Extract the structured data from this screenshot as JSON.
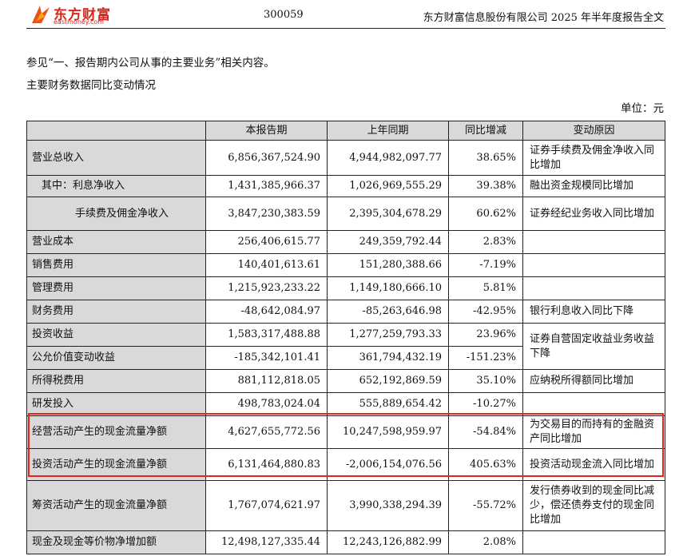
{
  "header": {
    "logo_cn": "东方财富",
    "logo_en": "eastmoney.com",
    "stock_code": "300059",
    "report_title": "东方财富信息股份有限公司 2025 年半年度报告全文"
  },
  "intro": {
    "line1": "参见“一、报告期内公司从事的主要业务”相关内容。",
    "line2": "主要财务数据同比变动情况",
    "unit": "单位：元"
  },
  "table": {
    "headers": [
      "",
      "本报告期",
      "上年同期",
      "同比增减",
      "变动原因"
    ],
    "rows": [
      {
        "item": "营业总收入",
        "current": "6,856,367,524.90",
        "prior": "4,944,982,097.77",
        "change": "38.65%",
        "reason": "证券手续费及佣金净收入同比增加"
      },
      {
        "item": "其中：利息净收入",
        "current": "1,431,385,966.37",
        "prior": "1,026,969,555.29",
        "change": "39.38%",
        "reason": "融出资金规模同比增加"
      },
      {
        "item": "手续费及佣金净收入",
        "current": "3,847,230,383.59",
        "prior": "2,395,304,678.29",
        "change": "60.62%",
        "reason": "证券经纪业务收入同比增加"
      },
      {
        "item": "营业成本",
        "current": "256,406,615.77",
        "prior": "249,359,792.44",
        "change": "2.83%",
        "reason": ""
      },
      {
        "item": "销售费用",
        "current": "140,401,613.61",
        "prior": "151,280,388.66",
        "change": "-7.19%",
        "reason": ""
      },
      {
        "item": "管理费用",
        "current": "1,215,923,233.22",
        "prior": "1,149,180,666.10",
        "change": "5.81%",
        "reason": ""
      },
      {
        "item": "财务费用",
        "current": "-48,642,084.97",
        "prior": "-85,263,646.98",
        "change": "-42.95%",
        "reason": "银行利息收入同比下降"
      },
      {
        "item": "投资收益",
        "current": "1,583,317,488.88",
        "prior": "1,277,259,793.33",
        "change": "23.96%",
        "reason": "证券自营固定收益业务收益下降"
      },
      {
        "item": "公允价值变动收益",
        "current": "-185,342,101.41",
        "prior": "361,794,432.19",
        "change": "-151.23%",
        "reason": ""
      },
      {
        "item": "所得税费用",
        "current": "881,112,818.05",
        "prior": "652,192,869.59",
        "change": "35.10%",
        "reason": "应纳税所得额同比增加"
      },
      {
        "item": "研发投入",
        "current": "498,783,024.04",
        "prior": "555,889,654.42",
        "change": "-10.27%",
        "reason": ""
      },
      {
        "item": "经营活动产生的现金流量净额",
        "current": "4,627,655,772.56",
        "prior": "10,247,598,959.97",
        "change": "-54.84%",
        "reason": "为交易目的而持有的金融资产同比增加"
      },
      {
        "item": "投资活动产生的现金流量净额",
        "current": "6,131,464,880.83",
        "prior": "-2,006,154,076.56",
        "change": "405.63%",
        "reason": "投资活动现金流入同比增加"
      },
      {
        "item": "筹资活动产生的现金流量净额",
        "current": "1,767,074,621.97",
        "prior": "3,990,338,294.39",
        "change": "-55.72%",
        "reason": "发行债券收到的现金同比减少，偿还债券支付的现金同比增加"
      },
      {
        "item": "现金及现金等价物净增加额",
        "current": "12,498,127,335.44",
        "prior": "12,243,126,882.99",
        "change": "2.08%",
        "reason": ""
      }
    ]
  },
  "highlight_color": "#e8231a"
}
